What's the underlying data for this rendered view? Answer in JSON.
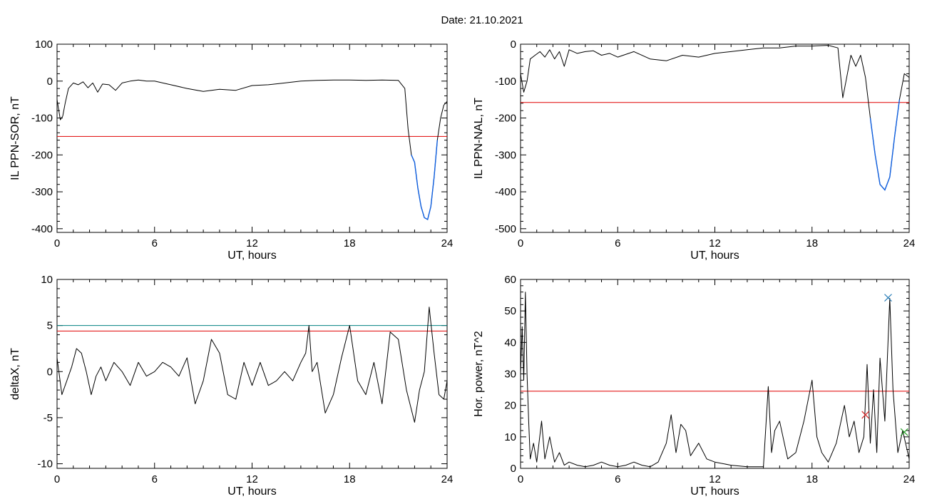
{
  "header": {
    "date_label": "Date:  21.10.2021"
  },
  "colors": {
    "trace": "#000000",
    "threshold_red": "#e00000",
    "threshold_teal": "#008080",
    "highlight_blue": "#1060e0",
    "marker_blue": "#1f77b4",
    "marker_red": "#d62728",
    "marker_green": "#2ca02c"
  },
  "chart_data": [
    {
      "type": "line",
      "title": "",
      "xlabel": "UT, hours",
      "ylabel": "IL PPN-SOR, nT",
      "xlim": [
        0,
        24
      ],
      "ylim": [
        -410,
        100
      ],
      "xticks": [
        "0",
        "6",
        "12",
        "18",
        "24"
      ],
      "yticks": [
        "100",
        "0",
        "-100",
        "-200",
        "-300",
        "-400"
      ],
      "x": [
        0,
        0.2,
        0.35,
        0.5,
        0.7,
        1.0,
        1.3,
        1.6,
        1.9,
        2.2,
        2.5,
        2.8,
        3.2,
        3.6,
        4.0,
        4.5,
        5.0,
        5.5,
        6.0,
        7.0,
        8.0,
        9.0,
        10.0,
        11.0,
        12.0,
        13.0,
        14.0,
        15.0,
        16.0,
        17.0,
        18.0,
        19.0,
        20.0,
        21.0,
        21.4,
        21.6,
        21.8,
        22.0,
        22.2,
        22.4,
        22.6,
        22.8,
        23.0,
        23.2,
        23.4,
        23.6,
        23.8,
        24.0
      ],
      "y": [
        -50,
        -105,
        -95,
        -60,
        -20,
        -5,
        -10,
        -2,
        -18,
        -5,
        -30,
        -8,
        -10,
        -25,
        -5,
        0,
        3,
        0,
        0,
        -10,
        -20,
        -28,
        -22,
        -25,
        -12,
        -10,
        -5,
        0,
        2,
        3,
        3,
        2,
        3,
        2,
        -20,
        -130,
        -200,
        -220,
        -290,
        -340,
        -370,
        -375,
        -340,
        -260,
        -160,
        -100,
        -65,
        -55
      ],
      "highlight": {
        "x_from": 21.8,
        "x_to": 23.4,
        "color": "#1060e0"
      },
      "hlines": [
        {
          "y": -150,
          "color": "#e00000"
        }
      ]
    },
    {
      "type": "line",
      "title": "",
      "xlabel": "UT, hours",
      "ylabel": "IL PPN-NAL, nT",
      "xlim": [
        0,
        24
      ],
      "ylim": [
        -510,
        0
      ],
      "xticks": [
        "0",
        "6",
        "12",
        "18",
        "24"
      ],
      "yticks": [
        "0",
        "-100",
        "-200",
        "-300",
        "-400",
        "-500"
      ],
      "x": [
        0,
        0.2,
        0.4,
        0.6,
        0.9,
        1.2,
        1.5,
        1.8,
        2.1,
        2.4,
        2.7,
        3.0,
        3.5,
        4.0,
        4.5,
        5.0,
        5.5,
        6.0,
        7.0,
        8.0,
        9.0,
        10.0,
        11.0,
        12.0,
        13.0,
        14.0,
        15.0,
        16.0,
        17.0,
        18.0,
        19.0,
        19.6,
        19.9,
        20.1,
        20.4,
        20.7,
        21.0,
        21.3,
        21.6,
        21.9,
        22.2,
        22.5,
        22.8,
        23.1,
        23.4,
        23.7,
        24.0
      ],
      "y": [
        -80,
        -130,
        -100,
        -40,
        -30,
        -20,
        -35,
        -15,
        -40,
        -20,
        -60,
        -15,
        -25,
        -20,
        -18,
        -30,
        -25,
        -35,
        -20,
        -40,
        -45,
        -30,
        -35,
        -25,
        -20,
        -15,
        -10,
        -10,
        -5,
        -5,
        -3,
        -10,
        -145,
        -100,
        -30,
        -60,
        -30,
        -90,
        -200,
        -300,
        -380,
        -395,
        -360,
        -250,
        -150,
        -80,
        -90
      ],
      "highlight": {
        "x_from": 21.6,
        "x_to": 23.4,
        "color": "#1060e0"
      },
      "hlines": [
        {
          "y": -158,
          "color": "#e00000"
        }
      ]
    },
    {
      "type": "line",
      "title": "",
      "xlabel": "UT, hours",
      "ylabel": "deltaX, nT",
      "xlim": [
        0,
        24
      ],
      "ylim": [
        -10.5,
        10
      ],
      "xticks": [
        "0",
        "6",
        "12",
        "18",
        "24"
      ],
      "yticks": [
        "10",
        "5",
        "0",
        "-5",
        "-10"
      ],
      "x": [
        0,
        0.3,
        0.6,
        0.9,
        1.2,
        1.5,
        1.8,
        2.1,
        2.4,
        2.7,
        3.0,
        3.5,
        4.0,
        4.5,
        5.0,
        5.5,
        6.0,
        6.5,
        7.0,
        7.5,
        8.0,
        8.5,
        9.0,
        9.5,
        10.0,
        10.5,
        11.0,
        11.5,
        12.0,
        12.5,
        13.0,
        13.5,
        14.0,
        14.5,
        15.0,
        15.3,
        15.5,
        15.7,
        16.0,
        16.5,
        17.0,
        17.5,
        18.0,
        18.5,
        19.0,
        19.5,
        20.0,
        20.5,
        21.0,
        21.5,
        22.0,
        22.3,
        22.6,
        22.9,
        23.2,
        23.5,
        23.8,
        24.0
      ],
      "y": [
        1.5,
        -2.5,
        -1.0,
        0.5,
        2.5,
        2.0,
        0.0,
        -2.5,
        -0.5,
        0.5,
        -1.0,
        1.0,
        0.0,
        -1.5,
        1.0,
        -0.5,
        0.0,
        1.0,
        0.5,
        -0.5,
        1.5,
        -3.5,
        -1.0,
        3.5,
        2.0,
        -2.5,
        -3.0,
        1.0,
        -1.5,
        1.0,
        -1.5,
        -1.0,
        0.0,
        -1.0,
        1.0,
        2.0,
        5.0,
        0.0,
        1.0,
        -4.5,
        -2.5,
        1.5,
        5.0,
        -1.0,
        -2.5,
        1.0,
        -3.5,
        4.3,
        3.5,
        -2.0,
        -5.5,
        -2.0,
        0.0,
        7.0,
        2.0,
        -2.5,
        -3.0,
        -1.0
      ],
      "hlines": [
        {
          "y": 5.0,
          "color": "#008080"
        },
        {
          "y": 4.4,
          "color": "#e00000"
        }
      ]
    },
    {
      "type": "line",
      "title": "",
      "xlabel": "UT, hours",
      "ylabel": "Hor. power, nT^2",
      "xlim": [
        0,
        24
      ],
      "ylim": [
        0,
        60
      ],
      "xticks": [
        "0",
        "6",
        "12",
        "18",
        "24"
      ],
      "yticks": [
        "60",
        "50",
        "40",
        "30",
        "20",
        "10",
        "0"
      ],
      "x": [
        0,
        0.1,
        0.2,
        0.3,
        0.4,
        0.5,
        0.6,
        0.8,
        1.0,
        1.3,
        1.5,
        1.8,
        2.1,
        2.4,
        2.7,
        3.0,
        3.5,
        4.0,
        4.5,
        5.0,
        5.5,
        6.0,
        6.5,
        7.0,
        7.5,
        8.0,
        8.5,
        9.0,
        9.3,
        9.6,
        9.9,
        10.2,
        10.5,
        11.0,
        11.5,
        12.0,
        13.0,
        14.0,
        15.0,
        15.3,
        15.5,
        15.7,
        16.0,
        16.5,
        17.0,
        17.5,
        18.0,
        18.3,
        18.6,
        19.0,
        19.5,
        20.0,
        20.3,
        20.6,
        20.9,
        21.2,
        21.4,
        21.6,
        21.8,
        22.0,
        22.2,
        22.5,
        22.8,
        23.0,
        23.3,
        23.6,
        24.0
      ],
      "y": [
        30,
        45,
        28,
        56,
        30,
        15,
        3,
        8,
        2,
        15,
        3,
        10,
        2,
        5,
        1,
        2,
        1,
        0.5,
        1,
        2,
        1,
        0.5,
        1,
        2,
        1,
        0.5,
        2,
        8,
        17,
        5,
        14,
        12,
        4,
        8,
        3,
        2,
        1,
        0.5,
        0.5,
        26,
        5,
        12,
        15,
        3,
        5,
        15,
        28,
        10,
        5,
        2,
        8,
        20,
        10,
        15,
        5,
        10,
        33,
        8,
        25,
        5,
        35,
        15,
        54,
        25,
        5,
        12,
        3
      ],
      "hlines": [
        {
          "y": 24.5,
          "color": "#e00000"
        }
      ],
      "markers": [
        {
          "x": 22.7,
          "y": 54.2,
          "color": "#1f77b4"
        },
        {
          "x": 21.3,
          "y": 17.0,
          "color": "#d62728"
        },
        {
          "x": 23.7,
          "y": 11.5,
          "color": "#2ca02c"
        }
      ]
    }
  ]
}
